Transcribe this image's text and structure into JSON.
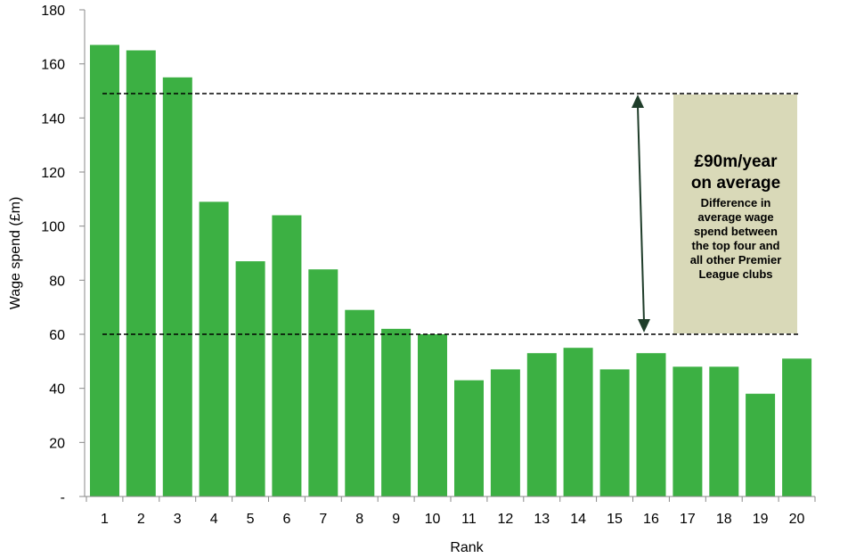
{
  "chart_data": {
    "type": "bar",
    "title": "",
    "xlabel": "Rank",
    "ylabel": "Wage spend (£m)",
    "categories": [
      "1",
      "2",
      "3",
      "4",
      "5",
      "6",
      "7",
      "8",
      "9",
      "10",
      "11",
      "12",
      "13",
      "14",
      "15",
      "16",
      "17",
      "18",
      "19",
      "20"
    ],
    "values": [
      167,
      165,
      155,
      109,
      87,
      104,
      84,
      69,
      62,
      60,
      43,
      47,
      53,
      55,
      47,
      53,
      48,
      48,
      38,
      51
    ],
    "ylim": [
      0,
      180
    ],
    "yticks": [
      "-",
      "20",
      "40",
      "60",
      "80",
      "100",
      "120",
      "140",
      "160",
      "180"
    ],
    "bar_color": "#3cb043",
    "grid": false,
    "reference_lines": [
      {
        "value": 149,
        "style": "dashed",
        "color": "#000000"
      },
      {
        "value": 60,
        "style": "dashed",
        "color": "#000000"
      }
    ],
    "annotation": {
      "headline_line1": "£90m/year",
      "headline_line2": "on average",
      "detail_lines": [
        "Difference in",
        "average wage",
        "spend between",
        "the top four and",
        "all other Premier",
        "League clubs"
      ],
      "box_color": "#d9d9b8",
      "arrow_color": "#1f3d2a",
      "arrow_from": 149,
      "arrow_to": 60
    }
  }
}
